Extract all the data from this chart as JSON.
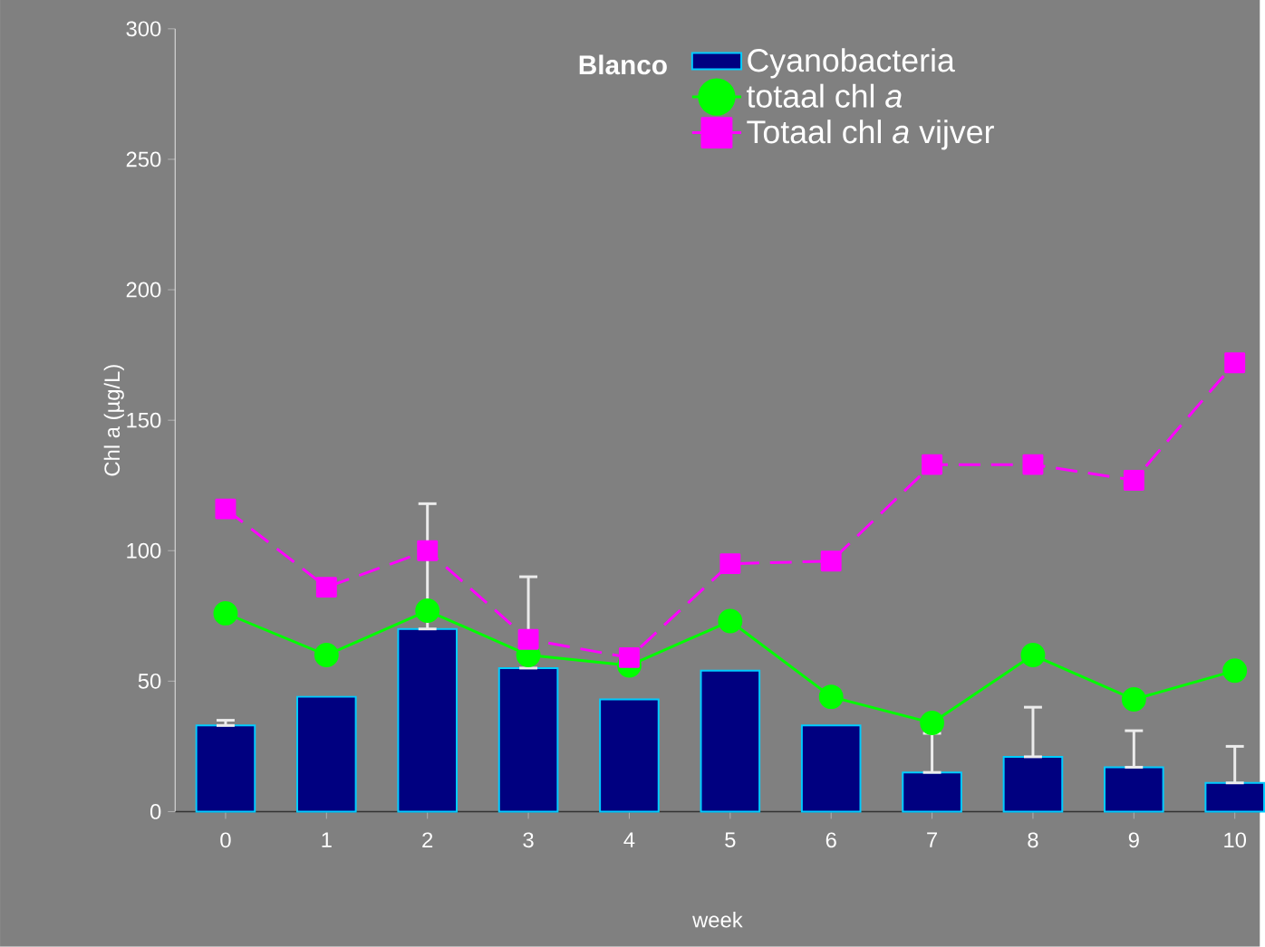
{
  "chart_data": {
    "type": "bar",
    "xlabel": "week",
    "ylabel": "Chl a (µg/L)",
    "categories": [
      "0",
      "1",
      "2",
      "3",
      "4",
      "5",
      "6",
      "7",
      "8",
      "9",
      "10"
    ],
    "series": [
      {
        "name": "Cyanobacteria",
        "color": "#000080",
        "values": [
          33,
          44,
          70,
          55,
          43,
          54,
          33,
          15,
          21,
          17,
          11
        ],
        "errors": [
          [
            33,
            35
          ],
          null,
          [
            70,
            118
          ],
          [
            55,
            90
          ],
          null,
          null,
          null,
          [
            15,
            30
          ],
          [
            21,
            40
          ],
          [
            17,
            31
          ],
          [
            11,
            25
          ]
        ]
      },
      {
        "name": "totaal chl *a*",
        "type": "line",
        "color": "#00ff00",
        "marker": "circle",
        "line_style": "solid",
        "values": [
          76,
          60,
          77,
          60,
          56,
          73,
          44,
          34,
          60,
          43,
          54
        ]
      },
      {
        "name": "Totaal chl *a* vijver",
        "type": "line",
        "color": "#ff00ff",
        "marker": "square",
        "line_style": "dashed",
        "values": [
          116,
          86,
          100,
          66,
          59,
          95,
          96,
          133,
          133,
          127,
          172
        ]
      }
    ],
    "ylim": [
      0,
      300
    ],
    "yticks": [
      0,
      50,
      100,
      150,
      200,
      250,
      300
    ],
    "annotations": [
      "Blanco"
    ],
    "legend": "top right",
    "grid": false
  }
}
